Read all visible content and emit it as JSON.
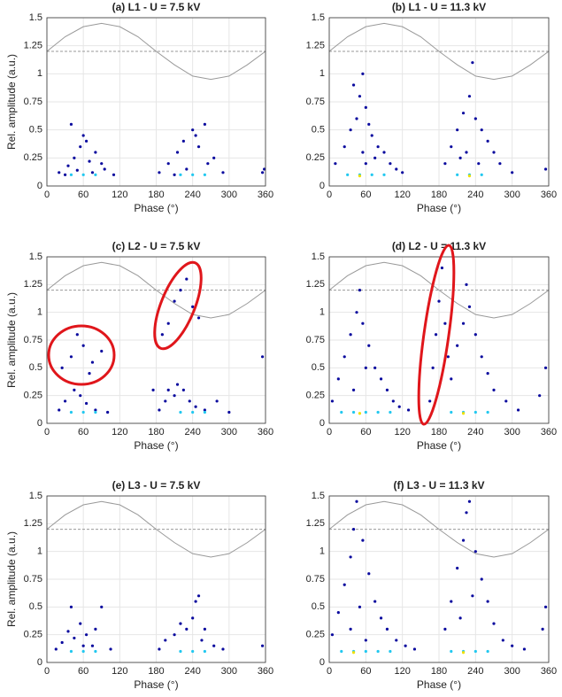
{
  "chart_data": [
    {
      "type": "scatter",
      "title": "(a) L1 - U = 7.5 kV",
      "xlabel": "Phase (°)",
      "ylabel": "Rel. amplitude (a.u.)",
      "xlim": [
        0,
        360
      ],
      "ylim": [
        0,
        1.5
      ],
      "xticks": [
        0,
        60,
        120,
        180,
        240,
        300,
        360
      ],
      "yticks": [
        0,
        0.25,
        0.5,
        0.75,
        1,
        1.25,
        1.5
      ],
      "grid": true,
      "series": [
        {
          "color": "#0a0a9e",
          "x": [
            20,
            35,
            45,
            55,
            60,
            70,
            80,
            95,
            110,
            40,
            65,
            50,
            30,
            75,
            90,
            185,
            200,
            215,
            225,
            240,
            250,
            260,
            275,
            290,
            230,
            210,
            245,
            265,
            355,
            358
          ],
          "values": [
            0.12,
            0.18,
            0.25,
            0.35,
            0.45,
            0.22,
            0.3,
            0.15,
            0.1,
            0.55,
            0.4,
            0.14,
            0.1,
            0.12,
            0.2,
            0.12,
            0.2,
            0.3,
            0.4,
            0.5,
            0.35,
            0.55,
            0.25,
            0.12,
            0.15,
            0.1,
            0.45,
            0.2,
            0.12,
            0.15
          ]
        },
        {
          "color": "#22c8f0",
          "x": [
            40,
            60,
            80,
            220,
            240,
            260
          ],
          "values": [
            0.1,
            0.1,
            0.1,
            0.1,
            0.1,
            0.1
          ]
        }
      ],
      "lines": [
        {
          "color": "#999999",
          "dashed": false,
          "x": [
            0,
            30,
            60,
            90,
            120,
            150,
            180,
            210,
            240,
            270,
            300,
            330,
            360
          ],
          "values": [
            1.2,
            1.33,
            1.42,
            1.45,
            1.42,
            1.33,
            1.2,
            1.08,
            0.98,
            0.95,
            0.98,
            1.08,
            1.2
          ]
        },
        {
          "color": "#999999",
          "dashed": true,
          "x": [
            0,
            360
          ],
          "values": [
            1.2,
            1.2
          ]
        }
      ]
    },
    {
      "type": "scatter",
      "title": "(b) L1 - U = 11.3 kV",
      "xlabel": "Phase (°)",
      "xlim": [
        0,
        360
      ],
      "ylim": [
        0,
        1.5
      ],
      "xticks": [
        0,
        60,
        120,
        180,
        240,
        300,
        360
      ],
      "yticks": [
        0,
        0.25,
        0.5,
        0.75,
        1,
        1.25,
        1.5
      ],
      "grid": true,
      "series": [
        {
          "color": "#0a0a9e",
          "x": [
            10,
            25,
            35,
            45,
            50,
            55,
            60,
            65,
            70,
            80,
            90,
            100,
            110,
            120,
            40,
            55,
            60,
            75,
            190,
            200,
            210,
            220,
            230,
            240,
            250,
            260,
            270,
            280,
            300,
            225,
            235,
            215,
            355,
            245
          ],
          "values": [
            0.2,
            0.35,
            0.5,
            0.6,
            0.8,
            1.0,
            0.7,
            0.55,
            0.45,
            0.35,
            0.3,
            0.2,
            0.15,
            0.12,
            0.9,
            0.3,
            0.2,
            0.25,
            0.2,
            0.35,
            0.5,
            0.65,
            0.8,
            0.6,
            0.5,
            0.4,
            0.3,
            0.2,
            0.12,
            0.3,
            1.1,
            0.25,
            0.15,
            0.2
          ]
        },
        {
          "color": "#22c8f0",
          "x": [
            30,
            50,
            70,
            90,
            210,
            230,
            250
          ],
          "values": [
            0.1,
            0.1,
            0.1,
            0.1,
            0.1,
            0.1,
            0.1
          ]
        },
        {
          "color": "#f0e000",
          "x": [
            50,
            230
          ],
          "values": [
            0.09,
            0.09
          ]
        }
      ],
      "lines": [
        {
          "color": "#999999",
          "dashed": false,
          "x": [
            0,
            30,
            60,
            90,
            120,
            150,
            180,
            210,
            240,
            270,
            300,
            330,
            360
          ],
          "values": [
            1.2,
            1.33,
            1.42,
            1.45,
            1.42,
            1.33,
            1.2,
            1.08,
            0.98,
            0.95,
            0.98,
            1.08,
            1.2
          ]
        },
        {
          "color": "#999999",
          "dashed": true,
          "x": [
            0,
            360
          ],
          "values": [
            1.2,
            1.2
          ]
        }
      ]
    },
    {
      "type": "scatter",
      "title": "(c) L2 - U = 7.5 kV",
      "xlabel": "Phase (°)",
      "ylabel": "Rel. amplitude (a.u.)",
      "xlim": [
        0,
        360
      ],
      "ylim": [
        0,
        1.5
      ],
      "xticks": [
        0,
        60,
        120,
        180,
        240,
        300,
        360
      ],
      "yticks": [
        0,
        0.25,
        0.5,
        0.75,
        1,
        1.25,
        1.5
      ],
      "grid": true,
      "series": [
        {
          "color": "#0a0a9e",
          "x": [
            20,
            30,
            45,
            55,
            65,
            80,
            100,
            40,
            60,
            75,
            25,
            50,
            70,
            90,
            185,
            195,
            200,
            210,
            215,
            225,
            235,
            245,
            260,
            280,
            300,
            190,
            200,
            210,
            220,
            230,
            240,
            250,
            355,
            175
          ],
          "values": [
            0.12,
            0.2,
            0.3,
            0.25,
            0.18,
            0.12,
            0.1,
            0.6,
            0.7,
            0.55,
            0.5,
            0.8,
            0.45,
            0.65,
            0.12,
            0.2,
            0.3,
            0.25,
            0.35,
            0.3,
            0.2,
            0.15,
            0.12,
            0.2,
            0.1,
            0.8,
            0.9,
            1.1,
            1.2,
            1.3,
            1.05,
            0.95,
            0.6,
            0.3
          ]
        },
        {
          "color": "#22c8f0",
          "x": [
            40,
            60,
            80,
            220,
            240,
            260
          ],
          "values": [
            0.1,
            0.1,
            0.1,
            0.1,
            0.1,
            0.1
          ]
        }
      ],
      "lines": [
        {
          "color": "#999999",
          "dashed": false,
          "x": [
            0,
            30,
            60,
            90,
            120,
            150,
            180,
            210,
            240,
            270,
            300,
            330,
            360
          ],
          "values": [
            1.2,
            1.33,
            1.42,
            1.45,
            1.42,
            1.33,
            1.2,
            1.08,
            0.98,
            0.95,
            0.98,
            1.08,
            1.2
          ]
        },
        {
          "color": "#999999",
          "dashed": true,
          "x": [
            0,
            360
          ],
          "values": [
            1.2,
            1.2
          ]
        }
      ]
    },
    {
      "type": "scatter",
      "title": "(d) L2 - U = 11.3 kV",
      "xlabel": "Phase (°)",
      "xlim": [
        0,
        360
      ],
      "ylim": [
        0,
        1.5
      ],
      "xticks": [
        0,
        60,
        120,
        180,
        240,
        300,
        360
      ],
      "yticks": [
        0,
        0.25,
        0.5,
        0.75,
        1,
        1.25,
        1.5
      ],
      "grid": true,
      "series": [
        {
          "color": "#0a0a9e",
          "x": [
            5,
            15,
            25,
            35,
            45,
            50,
            55,
            65,
            75,
            85,
            95,
            105,
            115,
            130,
            40,
            60,
            165,
            170,
            175,
            180,
            185,
            190,
            195,
            200,
            210,
            220,
            230,
            240,
            250,
            260,
            270,
            290,
            310,
            345,
            355,
            225
          ],
          "values": [
            0.2,
            0.4,
            0.6,
            0.8,
            1.0,
            1.2,
            0.9,
            0.7,
            0.5,
            0.4,
            0.3,
            0.2,
            0.15,
            0.12,
            0.3,
            0.5,
            0.2,
            0.5,
            0.8,
            1.1,
            1.4,
            0.9,
            0.6,
            0.4,
            0.7,
            0.9,
            1.05,
            0.8,
            0.6,
            0.45,
            0.3,
            0.2,
            0.12,
            0.25,
            0.5,
            1.25
          ]
        },
        {
          "color": "#22c8f0",
          "x": [
            20,
            40,
            60,
            80,
            100,
            200,
            220,
            240,
            260
          ],
          "values": [
            0.1,
            0.1,
            0.1,
            0.1,
            0.1,
            0.1,
            0.1,
            0.1,
            0.1
          ]
        },
        {
          "color": "#f0e000",
          "x": [
            50,
            220
          ],
          "values": [
            0.09,
            0.09
          ]
        }
      ],
      "lines": [
        {
          "color": "#999999",
          "dashed": false,
          "x": [
            0,
            30,
            60,
            90,
            120,
            150,
            180,
            210,
            240,
            270,
            300,
            330,
            360
          ],
          "values": [
            1.2,
            1.33,
            1.42,
            1.45,
            1.42,
            1.33,
            1.2,
            1.08,
            0.98,
            0.95,
            0.98,
            1.08,
            1.2
          ]
        },
        {
          "color": "#999999",
          "dashed": true,
          "x": [
            0,
            360
          ],
          "values": [
            1.2,
            1.2
          ]
        }
      ]
    },
    {
      "type": "scatter",
      "title": "(e) L3 - U = 7.5 kV",
      "xlabel": "Phase (°)",
      "ylabel": "Rel. amplitude (a.u.)",
      "xlim": [
        0,
        360
      ],
      "ylim": [
        0,
        1.5
      ],
      "xticks": [
        0,
        60,
        120,
        180,
        240,
        300,
        360
      ],
      "yticks": [
        0,
        0.25,
        0.5,
        0.75,
        1,
        1.25,
        1.5
      ],
      "grid": true,
      "series": [
        {
          "color": "#0a0a9e",
          "x": [
            15,
            25,
            35,
            45,
            55,
            65,
            75,
            90,
            105,
            40,
            80,
            60,
            185,
            195,
            210,
            220,
            230,
            240,
            250,
            260,
            275,
            290,
            245,
            255,
            355
          ],
          "values": [
            0.12,
            0.18,
            0.28,
            0.22,
            0.35,
            0.25,
            0.15,
            0.5,
            0.12,
            0.5,
            0.3,
            0.15,
            0.12,
            0.2,
            0.25,
            0.35,
            0.3,
            0.4,
            0.6,
            0.3,
            0.15,
            0.12,
            0.55,
            0.2,
            0.15
          ]
        },
        {
          "color": "#22c8f0",
          "x": [
            40,
            60,
            80,
            220,
            240,
            260
          ],
          "values": [
            0.1,
            0.1,
            0.1,
            0.1,
            0.1,
            0.1
          ]
        }
      ],
      "lines": [
        {
          "color": "#999999",
          "dashed": false,
          "x": [
            0,
            30,
            60,
            90,
            120,
            150,
            180,
            210,
            240,
            270,
            300,
            330,
            360
          ],
          "values": [
            1.2,
            1.33,
            1.42,
            1.45,
            1.42,
            1.33,
            1.2,
            1.08,
            0.98,
            0.95,
            0.98,
            1.08,
            1.2
          ]
        },
        {
          "color": "#999999",
          "dashed": true,
          "x": [
            0,
            360
          ],
          "values": [
            1.2,
            1.2
          ]
        }
      ]
    },
    {
      "type": "scatter",
      "title": "(f) L3 - U = 11.3 kV",
      "xlabel": "Phase (°)",
      "xlim": [
        0,
        360
      ],
      "ylim": [
        0,
        1.5
      ],
      "xticks": [
        0,
        60,
        120,
        180,
        240,
        300,
        360
      ],
      "yticks": [
        0,
        0.25,
        0.5,
        0.75,
        1,
        1.25,
        1.5
      ],
      "grid": true,
      "series": [
        {
          "color": "#0a0a9e",
          "x": [
            5,
            15,
            25,
            35,
            40,
            45,
            55,
            65,
            75,
            85,
            95,
            110,
            125,
            140,
            35,
            50,
            60,
            190,
            200,
            210,
            220,
            225,
            230,
            240,
            250,
            260,
            270,
            285,
            300,
            320,
            350,
            355,
            215,
            235
          ],
          "values": [
            0.25,
            0.45,
            0.7,
            0.95,
            1.2,
            1.45,
            1.1,
            0.8,
            0.55,
            0.4,
            0.3,
            0.2,
            0.15,
            0.12,
            0.3,
            0.5,
            0.2,
            0.3,
            0.55,
            0.85,
            1.1,
            1.35,
            1.45,
            1.0,
            0.75,
            0.55,
            0.35,
            0.2,
            0.15,
            0.12,
            0.3,
            0.5,
            0.4,
            0.6
          ]
        },
        {
          "color": "#22c8f0",
          "x": [
            20,
            40,
            60,
            80,
            100,
            200,
            220,
            240,
            260
          ],
          "values": [
            0.1,
            0.1,
            0.1,
            0.1,
            0.1,
            0.1,
            0.1,
            0.1,
            0.1
          ]
        },
        {
          "color": "#f0e000",
          "x": [
            40,
            220
          ],
          "values": [
            0.09,
            0.09
          ]
        }
      ],
      "lines": [
        {
          "color": "#999999",
          "dashed": false,
          "x": [
            0,
            30,
            60,
            90,
            120,
            150,
            180,
            210,
            240,
            270,
            300,
            330,
            360
          ],
          "values": [
            1.2,
            1.33,
            1.42,
            1.45,
            1.42,
            1.33,
            1.2,
            1.08,
            0.98,
            0.95,
            0.98,
            1.08,
            1.2
          ]
        },
        {
          "color": "#999999",
          "dashed": true,
          "x": [
            0,
            360
          ],
          "values": [
            1.2,
            1.2
          ]
        }
      ]
    }
  ]
}
